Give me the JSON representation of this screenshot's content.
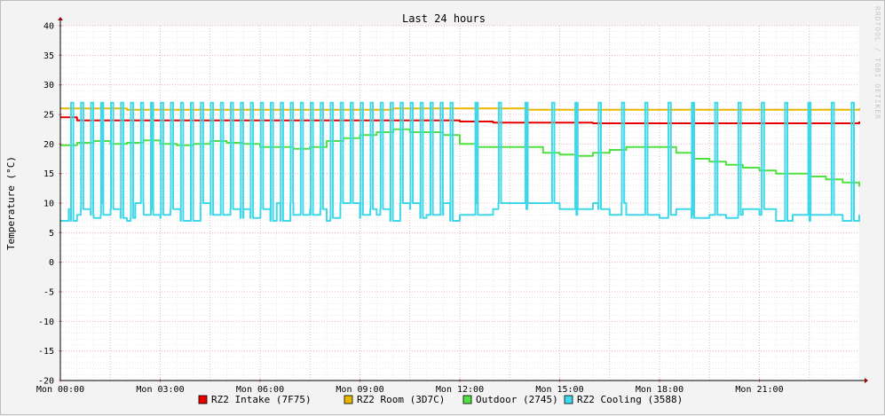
{
  "chart_data": {
    "type": "line",
    "title": "Last 24 hours",
    "xlabel": "",
    "ylabel": "Temperature (°C)",
    "watermark": "RRDTOOL / TOBI OETIKER",
    "ylim": [
      -20,
      40
    ],
    "y_ticks": [
      40,
      35,
      30,
      25,
      20,
      15,
      10,
      5,
      0,
      -5,
      -10,
      -15,
      -20
    ],
    "y_tick_labels": [
      "40",
      "35",
      "30",
      "25",
      "20",
      "15",
      "10",
      "5",
      "0",
      "-5",
      "-10",
      "-15",
      "-20"
    ],
    "x_range_hours": [
      0,
      24
    ],
    "x_tick_labels": [
      "Mon 00:00",
      "Mon 03:00",
      "Mon 06:00",
      "Mon 09:00",
      "Mon 12:00",
      "Mon 15:00",
      "Mon 18:00",
      "Mon 21:00"
    ],
    "x_tick_hours": [
      0,
      3,
      6,
      9,
      12,
      15,
      18,
      21
    ],
    "grid": true,
    "legend_position": "bottom",
    "series": [
      {
        "name": "RZ2 Intake (7F75)",
        "color": "#e80000",
        "x": [
          0,
          0.5,
          1,
          1.5,
          2,
          2.5,
          3,
          3.5,
          4,
          4.5,
          5,
          5.5,
          6,
          6.5,
          7,
          7.5,
          8,
          8.5,
          9,
          9.5,
          10,
          10.5,
          11,
          11.5,
          12,
          13,
          14,
          15,
          16,
          17,
          18,
          19,
          20,
          21,
          22,
          23,
          24
        ],
        "y": [
          24.5,
          24,
          24,
          24,
          24,
          24,
          24,
          24,
          24,
          24,
          24,
          24,
          24,
          24,
          24,
          24,
          24,
          24,
          24,
          24,
          24,
          24,
          24,
          24,
          23.8,
          23.6,
          23.6,
          23.6,
          23.5,
          23.5,
          23.5,
          23.5,
          23.5,
          23.5,
          23.5,
          23.5,
          23.8
        ]
      },
      {
        "name": "RZ2 Room (3D7C)",
        "color": "#e8b800",
        "x": [
          0,
          2,
          4,
          6,
          8,
          10,
          12,
          14,
          16,
          18,
          20,
          22,
          24
        ],
        "y": [
          26,
          25.8,
          25.8,
          25.8,
          25.8,
          26,
          26,
          25.8,
          25.8,
          25.8,
          25.8,
          25.8,
          26
        ]
      },
      {
        "name": "Outdoor (2745)",
        "color": "#50e040",
        "x": [
          0,
          0.5,
          1,
          1.5,
          2,
          2.5,
          3,
          3.5,
          4,
          4.5,
          5,
          5.5,
          6,
          6.5,
          7,
          7.5,
          8,
          8.5,
          9,
          9.5,
          10,
          10.5,
          11,
          11.5,
          12,
          12.5,
          13,
          13.5,
          14,
          14.5,
          15,
          15.5,
          16,
          16.5,
          17,
          17.5,
          18,
          18.5,
          19,
          19.5,
          20,
          20.5,
          21,
          21.5,
          22,
          22.5,
          23,
          23.5,
          24
        ],
        "y": [
          19.8,
          20.2,
          20.5,
          20,
          20.2,
          20.6,
          20,
          19.8,
          20,
          20.5,
          20.2,
          20,
          19.5,
          19.5,
          19.2,
          19.5,
          20.5,
          21,
          21.5,
          22,
          22.5,
          22,
          22,
          21.5,
          20,
          19.5,
          19.5,
          19.5,
          19.5,
          18.5,
          18.2,
          18,
          18.5,
          19,
          19.5,
          19.5,
          19.5,
          18.5,
          17.5,
          17,
          16.5,
          16,
          15.5,
          15,
          15,
          14.5,
          14,
          13.5,
          12.8
        ]
      },
      {
        "name": "RZ2 Cooling (3588)",
        "color": "#40d8e8",
        "x": [
          0,
          0.25,
          0.5,
          0.75,
          1,
          1.25,
          1.5,
          1.75,
          2,
          2.25,
          2.5,
          2.75,
          3,
          3.5,
          4,
          4.5,
          5,
          5.5,
          6,
          6.5,
          7,
          7.5,
          8,
          8.5,
          9,
          9.5,
          10,
          10.5,
          11,
          11.5,
          12,
          12.5,
          13,
          13.5,
          14,
          14.5,
          15,
          15.5,
          16,
          16.5,
          17,
          17.5,
          18,
          18.5,
          19,
          19.5,
          20,
          20.5,
          21,
          21.5,
          22,
          22.5,
          23,
          23.5,
          24
        ],
        "y": [
          7,
          9,
          8,
          9,
          7.5,
          10,
          8,
          9,
          7,
          10,
          8,
          9,
          7.5,
          9,
          7,
          10,
          8,
          9,
          7.5,
          10,
          8,
          9,
          7,
          10,
          7.5,
          8,
          7,
          9,
          8,
          10,
          8,
          10,
          9,
          10,
          9,
          10,
          9,
          8,
          10,
          8,
          8,
          8,
          7.5,
          9,
          8,
          8,
          7.5,
          9,
          8,
          7,
          8,
          7,
          8,
          7,
          8
        ]
      }
    ],
    "cooling_spike_hours": [
      0.35,
      0.65,
      0.95,
      1.25,
      1.55,
      1.85,
      2.15,
      2.45,
      2.75,
      3.05,
      3.35,
      3.65,
      3.95,
      4.25,
      4.55,
      4.85,
      5.15,
      5.45,
      5.75,
      6.05,
      6.35,
      6.65,
      6.95,
      7.25,
      7.55,
      7.85,
      8.15,
      8.45,
      8.75,
      9.05,
      9.35,
      9.65,
      9.95,
      10.25,
      10.55,
      10.85,
      11.15,
      11.45,
      11.75,
      12.5,
      13.2,
      14.0,
      14.8,
      15.5,
      16.2,
      16.9,
      17.6,
      18.3,
      19.0,
      19.7,
      20.4,
      21.1,
      21.8,
      22.5,
      23.2,
      23.8
    ],
    "cooling_spike_peak": 27
  }
}
